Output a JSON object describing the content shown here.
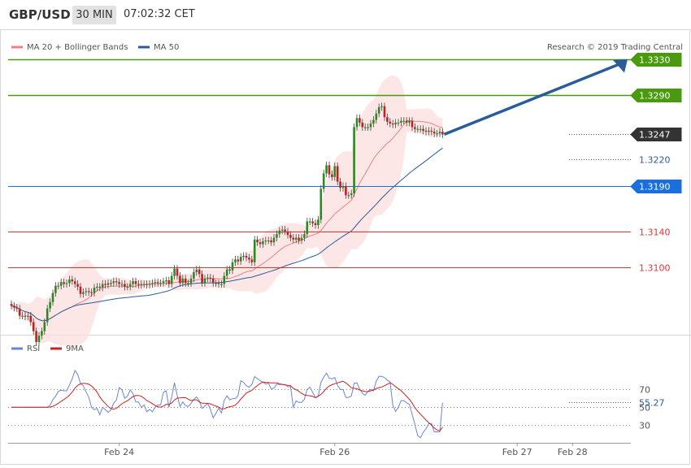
{
  "header": {
    "symbol": "GBP/USD",
    "timeframe": "30 MIN",
    "time": "07:02:32 CET"
  },
  "credit": "Research © 2019 Trading Central",
  "colors": {
    "resistance": "#4a9a10",
    "support": "#e53030",
    "ma50": "#2a5c9a",
    "bollinger": "#f07070",
    "current": "#333333",
    "rsi": "#6a85d8",
    "ma9": "#d02020",
    "candle_up": "#2a8a22",
    "candle_down": "#c02020",
    "arrow": "#2a5c9a"
  },
  "chart_data": [
    {
      "type": "candlestick",
      "legend": [
        {
          "name": "MA 20 + Bollinger Bands",
          "color": "#f08080"
        },
        {
          "name": "MA 50",
          "color": "#2a5c9a"
        }
      ],
      "ylim": [
        1.3026,
        1.3363
      ],
      "x_ticks": [
        {
          "label": "Feb 24",
          "index": 39
        },
        {
          "label": "Feb 26",
          "index": 117
        },
        {
          "label": "Feb 27",
          "index": 183
        },
        {
          "label": "Feb 28",
          "index": 203
        }
      ],
      "levels": [
        {
          "label": "1.3330",
          "value": 1.333,
          "kind": "resistance"
        },
        {
          "label": "1.3290",
          "value": 1.329,
          "kind": "resistance"
        },
        {
          "label": "1.3247",
          "value": 1.3247,
          "kind": "current"
        },
        {
          "label": "1.3220",
          "value": 1.322,
          "kind": "ma50"
        },
        {
          "label": "1.3190",
          "value": 1.319,
          "kind": "pivot"
        },
        {
          "label": "1.3140",
          "value": 1.314,
          "kind": "support"
        },
        {
          "label": "1.3100",
          "value": 1.31,
          "kind": "support"
        }
      ],
      "close": [
        1.3058,
        1.3056,
        1.3055,
        1.3047,
        1.3047,
        1.3046,
        1.3047,
        1.304,
        1.303,
        1.3018,
        1.3025,
        1.303,
        1.304,
        1.3055,
        1.3062,
        1.3072,
        1.308,
        1.308,
        1.3084,
        1.3082,
        1.3083,
        1.3087,
        1.3085,
        1.3082,
        1.3079,
        1.3071,
        1.3073,
        1.3074,
        1.3073,
        1.3072,
        1.3078,
        1.3079,
        1.3078,
        1.3082,
        1.3081,
        1.3083,
        1.3083,
        1.3085,
        1.3084,
        1.3082,
        1.3082,
        1.3079,
        1.3079,
        1.3082,
        1.3085,
        1.3082,
        1.3081,
        1.3082,
        1.3082,
        1.3081,
        1.3082,
        1.3083,
        1.3084,
        1.3083,
        1.3083,
        1.3085,
        1.3086,
        1.3082,
        1.3091,
        1.3099,
        1.3091,
        1.3083,
        1.3088,
        1.3083,
        1.3083,
        1.3088,
        1.3095,
        1.3098,
        1.3093,
        1.3083,
        1.3088,
        1.3089,
        1.3088,
        1.3083,
        1.3083,
        1.3082,
        1.3082,
        1.3091,
        1.3098,
        1.3097,
        1.3106,
        1.3109,
        1.3107,
        1.3112,
        1.3113,
        1.3111,
        1.3109,
        1.3106,
        1.3131,
        1.3128,
        1.3126,
        1.3129,
        1.313,
        1.313,
        1.3128,
        1.3133,
        1.3137,
        1.3141,
        1.3142,
        1.314,
        1.3136,
        1.3133,
        1.3131,
        1.3133,
        1.313,
        1.3133,
        1.3137,
        1.3151,
        1.3151,
        1.3149,
        1.3147,
        1.3153,
        1.3187,
        1.3204,
        1.3213,
        1.3203,
        1.32,
        1.3212,
        1.3195,
        1.3188,
        1.319,
        1.318,
        1.318,
        1.3182,
        1.3255,
        1.3265,
        1.326,
        1.3255,
        1.3255,
        1.3255,
        1.3259,
        1.3263,
        1.327,
        1.3277,
        1.3278,
        1.3266,
        1.3261,
        1.3259,
        1.3258,
        1.326,
        1.326,
        1.3262,
        1.3262,
        1.326,
        1.3262,
        1.3255,
        1.3253,
        1.3253,
        1.3253,
        1.3251,
        1.325,
        1.3251,
        1.325,
        1.3248,
        1.3248,
        1.325,
        1.3247
      ],
      "rsi_ylim": [
        15,
        100
      ],
      "rsi_ticks": [
        70,
        50,
        30
      ],
      "rsi_current": "55.27",
      "rsi_legend": [
        {
          "name": "RSI",
          "color": "#6a85d8"
        },
        {
          "name": "9MA",
          "color": "#d02020"
        }
      ]
    }
  ]
}
